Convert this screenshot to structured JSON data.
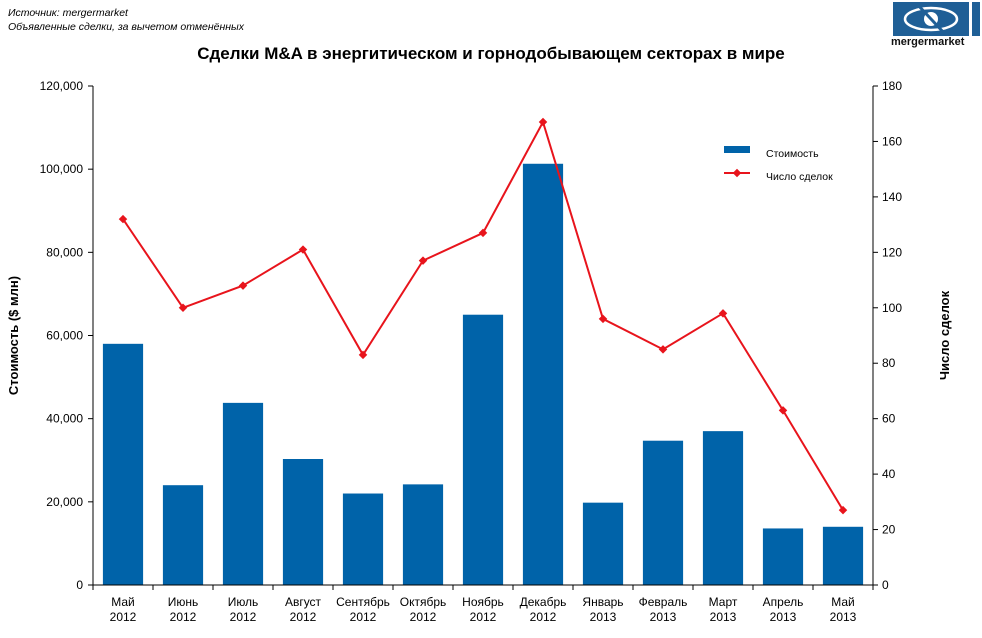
{
  "header": {
    "source_line": "Источник: mergermarket",
    "note_line": "Объявленные сделки, за вычетом отменённых",
    "logo_text": "mergermarket"
  },
  "chart_data": {
    "type": "bar",
    "title": "Сделки M&A в энергитическом и горнодобывающем секторах  в мире",
    "categories": [
      [
        "Май",
        "2012"
      ],
      [
        "Июнь",
        "2012"
      ],
      [
        "Июль",
        "2012"
      ],
      [
        "Август",
        "2012"
      ],
      [
        "Сентябрь",
        "2012"
      ],
      [
        "Октябрь",
        "2012"
      ],
      [
        "Ноябрь",
        "2012"
      ],
      [
        "Декабрь",
        "2012"
      ],
      [
        "Январь",
        "2013"
      ],
      [
        "Февраль",
        "2013"
      ],
      [
        "Март",
        "2013"
      ],
      [
        "Апрель",
        "2013"
      ],
      [
        "Май",
        "2013"
      ]
    ],
    "series": [
      {
        "name": "Стоимость",
        "type": "bar",
        "axis": "left",
        "color": "#0063A9",
        "values": [
          58000,
          24000,
          43800,
          30300,
          22000,
          24200,
          65000,
          101300,
          19800,
          34700,
          37000,
          13600,
          14000
        ]
      },
      {
        "name": "Число сделок",
        "type": "line",
        "axis": "right",
        "color": "#E8141C",
        "values": [
          132,
          100,
          108,
          121,
          83,
          117,
          127,
          167,
          96,
          85,
          98,
          63,
          27
        ]
      }
    ],
    "ylabel": "Стоимость ($ млн)",
    "y2label": "Число сделок",
    "ylim": [
      0,
      120000
    ],
    "y2lim": [
      0,
      180
    ],
    "yticks": [
      "0",
      "20,000",
      "40,000",
      "60,000",
      "80,000",
      "100,000",
      "120,000"
    ],
    "y2ticks": [
      "0",
      "20",
      "40",
      "60",
      "80",
      "100",
      "120",
      "140",
      "160",
      "180"
    ],
    "grid": false,
    "legend": "top-right"
  }
}
